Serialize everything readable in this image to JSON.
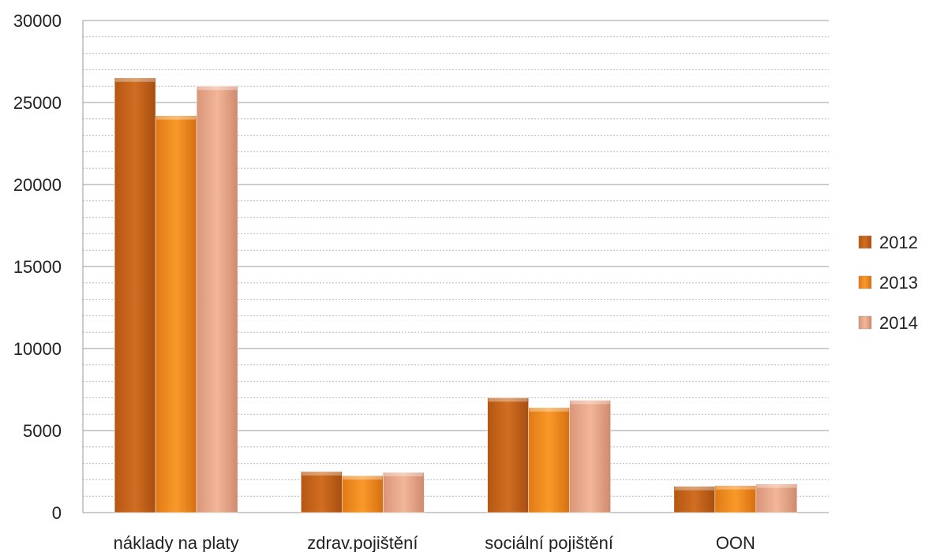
{
  "chart_data": {
    "type": "bar",
    "categories": [
      "náklady na platy",
      "zdrav.pojištění",
      "sociální pojištění",
      "OON"
    ],
    "series": [
      {
        "name": "2012",
        "values": [
          26500,
          2500,
          7000,
          1600
        ],
        "color": "#c8661e"
      },
      {
        "name": "2013",
        "values": [
          24200,
          2250,
          6400,
          1650
        ],
        "color": "#f28c1e"
      },
      {
        "name": "2014",
        "values": [
          26000,
          2450,
          6850,
          1750
        ],
        "color": "#e6a27c"
      }
    ],
    "ylim": [
      0,
      30000
    ],
    "yticks": [
      0,
      5000,
      10000,
      15000,
      20000,
      25000,
      30000
    ],
    "grid": true,
    "legend_position": "right",
    "title": "",
    "xlabel": "",
    "ylabel": ""
  }
}
